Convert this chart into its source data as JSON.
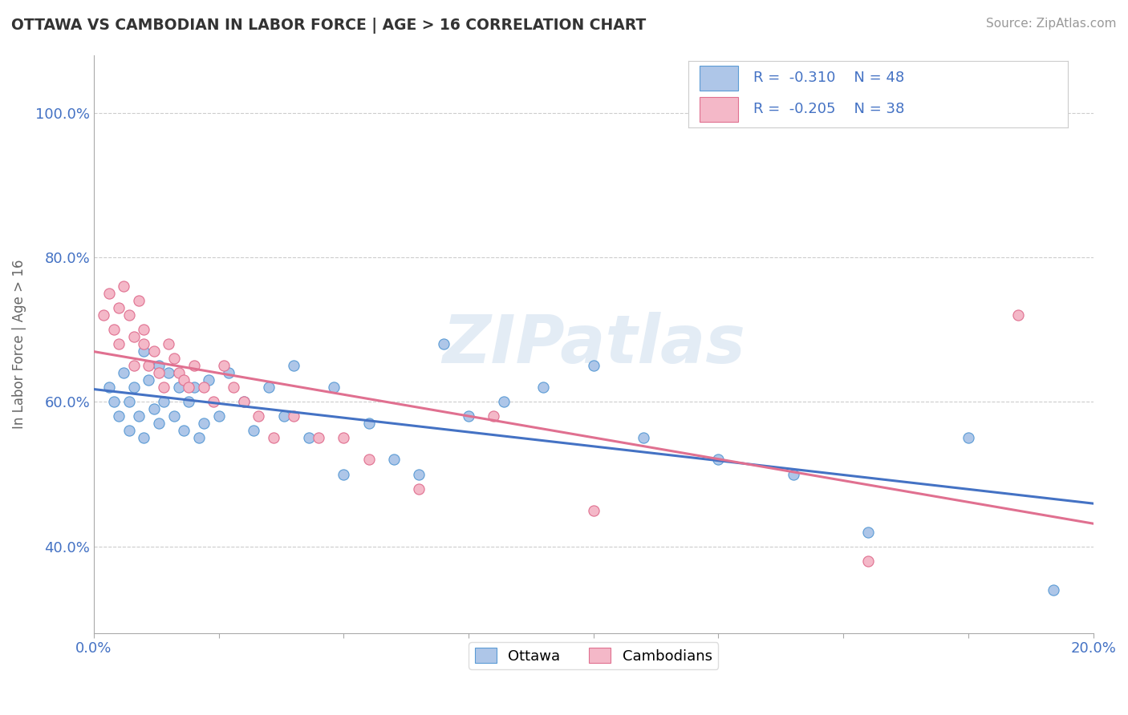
{
  "title": "OTTAWA VS CAMBODIAN IN LABOR FORCE | AGE > 16 CORRELATION CHART",
  "source_text": "Source: ZipAtlas.com",
  "ylabel": "In Labor Force | Age > 16",
  "yaxis_ticks": [
    "40.0%",
    "60.0%",
    "80.0%",
    "100.0%"
  ],
  "yaxis_vals": [
    0.4,
    0.6,
    0.8,
    1.0
  ],
  "ottawa_color": "#aec6e8",
  "ottawa_edge_color": "#5b9bd5",
  "cambodian_color": "#f4b8c8",
  "cambodian_edge_color": "#e07090",
  "ottawa_line_color": "#4472c4",
  "cambodian_line_color": "#e07090",
  "legend_text_color": "#4472c4",
  "ottawa_R": -0.31,
  "ottawa_N": 48,
  "cambodian_R": -0.205,
  "cambodian_N": 38,
  "watermark": "ZIPatlas",
  "xlim": [
    0.0,
    0.2
  ],
  "ylim": [
    0.28,
    1.08
  ],
  "ottawa_scatter_x": [
    0.003,
    0.004,
    0.005,
    0.006,
    0.007,
    0.007,
    0.008,
    0.009,
    0.01,
    0.01,
    0.011,
    0.012,
    0.013,
    0.013,
    0.014,
    0.015,
    0.016,
    0.017,
    0.018,
    0.019,
    0.02,
    0.021,
    0.022,
    0.023,
    0.025,
    0.027,
    0.03,
    0.032,
    0.035,
    0.038,
    0.04,
    0.043,
    0.048,
    0.05,
    0.055,
    0.06,
    0.065,
    0.07,
    0.075,
    0.082,
    0.09,
    0.1,
    0.11,
    0.125,
    0.14,
    0.155,
    0.175,
    0.192
  ],
  "ottawa_scatter_y": [
    0.62,
    0.6,
    0.58,
    0.64,
    0.56,
    0.6,
    0.62,
    0.58,
    0.67,
    0.55,
    0.63,
    0.59,
    0.57,
    0.65,
    0.6,
    0.64,
    0.58,
    0.62,
    0.56,
    0.6,
    0.62,
    0.55,
    0.57,
    0.63,
    0.58,
    0.64,
    0.6,
    0.56,
    0.62,
    0.58,
    0.65,
    0.55,
    0.62,
    0.5,
    0.57,
    0.52,
    0.5,
    0.68,
    0.58,
    0.6,
    0.62,
    0.65,
    0.55,
    0.52,
    0.5,
    0.42,
    0.55,
    0.34
  ],
  "cambodian_scatter_x": [
    0.002,
    0.003,
    0.004,
    0.005,
    0.005,
    0.006,
    0.007,
    0.008,
    0.008,
    0.009,
    0.01,
    0.01,
    0.011,
    0.012,
    0.013,
    0.014,
    0.015,
    0.016,
    0.017,
    0.018,
    0.019,
    0.02,
    0.022,
    0.024,
    0.026,
    0.028,
    0.03,
    0.033,
    0.036,
    0.04,
    0.045,
    0.05,
    0.055,
    0.065,
    0.08,
    0.1,
    0.155,
    0.185
  ],
  "cambodian_scatter_y": [
    0.72,
    0.75,
    0.7,
    0.68,
    0.73,
    0.76,
    0.72,
    0.69,
    0.65,
    0.74,
    0.7,
    0.68,
    0.65,
    0.67,
    0.64,
    0.62,
    0.68,
    0.66,
    0.64,
    0.63,
    0.62,
    0.65,
    0.62,
    0.6,
    0.65,
    0.62,
    0.6,
    0.58,
    0.55,
    0.58,
    0.55,
    0.55,
    0.52,
    0.48,
    0.58,
    0.45,
    0.38,
    0.72
  ],
  "background_color": "#ffffff",
  "grid_color": "#cccccc"
}
